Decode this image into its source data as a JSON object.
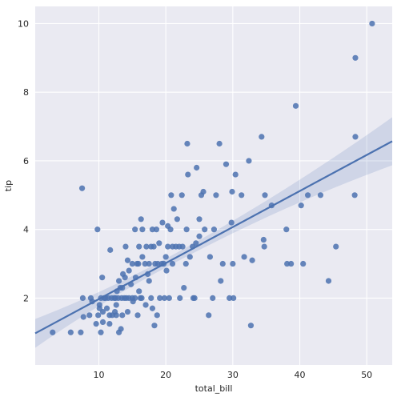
{
  "chart_data": {
    "type": "scatter",
    "xlabel": "total_bill",
    "ylabel": "tip",
    "xlim": [
      0.5,
      53.8
    ],
    "ylim": [
      0.05,
      10.5
    ],
    "xticks": [
      "10",
      "20",
      "30",
      "40",
      "50"
    ],
    "xtick_values": [
      10,
      20,
      30,
      40,
      50
    ],
    "yticks": [
      "2",
      "4",
      "6",
      "8",
      "10"
    ],
    "ytick_values": [
      2,
      4,
      6,
      8,
      10
    ],
    "grid": true,
    "background": "#eaeaf2",
    "marker_color": "#4c72b0",
    "regression": {
      "slope": 0.105,
      "intercept": 0.92,
      "ci_band": {
        "half_width_at_mean": 0.13,
        "half_width_at_x0": 0.42,
        "half_width_at_xmax": 0.7,
        "mean_x": 19.8
      }
    },
    "points": [
      [
        3.1,
        1.0
      ],
      [
        5.8,
        1.0
      ],
      [
        7.3,
        1.0
      ],
      [
        7.5,
        5.2
      ],
      [
        7.6,
        2.0
      ],
      [
        7.7,
        1.45
      ],
      [
        8.6,
        1.5
      ],
      [
        8.8,
        2.0
      ],
      [
        9.0,
        1.9
      ],
      [
        9.6,
        1.25
      ],
      [
        9.8,
        4.0
      ],
      [
        9.9,
        1.5
      ],
      [
        10.1,
        1.8
      ],
      [
        10.1,
        1.7
      ],
      [
        10.3,
        1.0
      ],
      [
        10.3,
        2.0
      ],
      [
        10.5,
        2.6
      ],
      [
        10.6,
        1.6
      ],
      [
        10.6,
        1.3
      ],
      [
        10.8,
        2.0
      ],
      [
        11.0,
        2.0
      ],
      [
        11.2,
        1.7
      ],
      [
        11.4,
        2.0
      ],
      [
        11.6,
        1.5
      ],
      [
        11.6,
        1.25
      ],
      [
        11.7,
        3.4
      ],
      [
        11.9,
        2.0
      ],
      [
        12.0,
        1.5
      ],
      [
        12.3,
        2.0
      ],
      [
        12.4,
        1.6
      ],
      [
        12.5,
        2.0
      ],
      [
        12.6,
        1.5
      ],
      [
        12.6,
        1.8
      ],
      [
        12.7,
        2.2
      ],
      [
        12.9,
        2.0
      ],
      [
        13.0,
        2.5
      ],
      [
        13.0,
        1.0
      ],
      [
        13.2,
        2.3
      ],
      [
        13.3,
        1.1
      ],
      [
        13.4,
        2.0
      ],
      [
        13.5,
        1.5
      ],
      [
        13.5,
        2.3
      ],
      [
        13.6,
        2.7
      ],
      [
        13.8,
        2.0
      ],
      [
        13.9,
        2.6
      ],
      [
        14.0,
        3.5
      ],
      [
        14.1,
        2.0
      ],
      [
        14.3,
        1.6
      ],
      [
        14.3,
        3.1
      ],
      [
        14.5,
        2.0
      ],
      [
        14.5,
        2.8
      ],
      [
        14.8,
        2.4
      ],
      [
        15.0,
        3.0
      ],
      [
        15.0,
        2.0
      ],
      [
        15.1,
        1.9
      ],
      [
        15.4,
        2.0
      ],
      [
        15.4,
        4.0
      ],
      [
        15.5,
        2.6
      ],
      [
        15.7,
        3.0
      ],
      [
        15.8,
        1.5
      ],
      [
        15.9,
        3.0
      ],
      [
        16.0,
        3.5
      ],
      [
        16.0,
        2.2
      ],
      [
        16.2,
        2.0
      ],
      [
        16.3,
        4.3
      ],
      [
        16.4,
        2.0
      ],
      [
        16.5,
        3.2
      ],
      [
        16.5,
        4.0
      ],
      [
        16.9,
        3.0
      ],
      [
        17.0,
        1.8
      ],
      [
        17.1,
        3.5
      ],
      [
        17.3,
        2.7
      ],
      [
        17.5,
        3.0
      ],
      [
        17.5,
        2.5
      ],
      [
        17.8,
        3.5
      ],
      [
        17.8,
        2.0
      ],
      [
        18.0,
        1.7
      ],
      [
        18.0,
        4.0
      ],
      [
        18.2,
        3.5
      ],
      [
        18.3,
        1.2
      ],
      [
        18.4,
        3.0
      ],
      [
        18.6,
        4.0
      ],
      [
        18.7,
        1.5
      ],
      [
        18.8,
        3.0
      ],
      [
        19.0,
        3.6
      ],
      [
        19.1,
        2.0
      ],
      [
        19.4,
        3.0
      ],
      [
        19.5,
        4.2
      ],
      [
        19.7,
        3.0
      ],
      [
        19.8,
        2.0
      ],
      [
        20.0,
        3.2
      ],
      [
        20.1,
        2.8
      ],
      [
        20.3,
        3.5
      ],
      [
        20.3,
        4.1
      ],
      [
        20.5,
        2.0
      ],
      [
        20.7,
        4.0
      ],
      [
        20.8,
        5.0
      ],
      [
        21.0,
        3.5
      ],
      [
        21.0,
        3.0
      ],
      [
        21.2,
        4.6
      ],
      [
        21.5,
        3.5
      ],
      [
        21.7,
        4.3
      ],
      [
        22.0,
        3.5
      ],
      [
        22.1,
        2.0
      ],
      [
        22.4,
        5.0
      ],
      [
        22.5,
        3.5
      ],
      [
        22.7,
        2.3
      ],
      [
        23.0,
        3.0
      ],
      [
        23.1,
        4.0
      ],
      [
        23.2,
        6.5
      ],
      [
        23.3,
        5.6
      ],
      [
        23.6,
        3.2
      ],
      [
        24.0,
        3.5
      ],
      [
        24.1,
        2.0
      ],
      [
        24.3,
        2.0
      ],
      [
        24.5,
        3.6
      ],
      [
        24.6,
        5.8
      ],
      [
        25.0,
        3.8
      ],
      [
        25.0,
        4.3
      ],
      [
        25.3,
        5.0
      ],
      [
        25.6,
        5.1
      ],
      [
        25.8,
        4.0
      ],
      [
        26.4,
        1.5
      ],
      [
        26.6,
        3.2
      ],
      [
        27.0,
        2.0
      ],
      [
        27.2,
        4.0
      ],
      [
        27.5,
        5.0
      ],
      [
        28.0,
        6.5
      ],
      [
        28.2,
        2.5
      ],
      [
        28.5,
        3.0
      ],
      [
        29.0,
        5.9
      ],
      [
        29.5,
        2.0
      ],
      [
        29.8,
        4.2
      ],
      [
        29.9,
        5.1
      ],
      [
        30.0,
        3.0
      ],
      [
        30.1,
        2.0
      ],
      [
        30.4,
        5.6
      ],
      [
        31.3,
        5.0
      ],
      [
        31.7,
        3.2
      ],
      [
        32.4,
        6.0
      ],
      [
        32.7,
        1.2
      ],
      [
        32.9,
        3.1
      ],
      [
        34.3,
        6.7
      ],
      [
        34.6,
        3.7
      ],
      [
        34.7,
        3.5
      ],
      [
        34.8,
        5.0
      ],
      [
        35.8,
        4.7
      ],
      [
        38.0,
        4.0
      ],
      [
        38.1,
        3.0
      ],
      [
        38.7,
        3.0
      ],
      [
        39.4,
        7.6
      ],
      [
        40.2,
        4.7
      ],
      [
        40.5,
        3.0
      ],
      [
        41.2,
        5.0
      ],
      [
        43.1,
        5.0
      ],
      [
        44.3,
        2.5
      ],
      [
        45.4,
        3.5
      ],
      [
        48.2,
        5.0
      ],
      [
        48.3,
        6.7
      ],
      [
        48.3,
        9.0
      ],
      [
        50.8,
        10.0
      ]
    ]
  }
}
